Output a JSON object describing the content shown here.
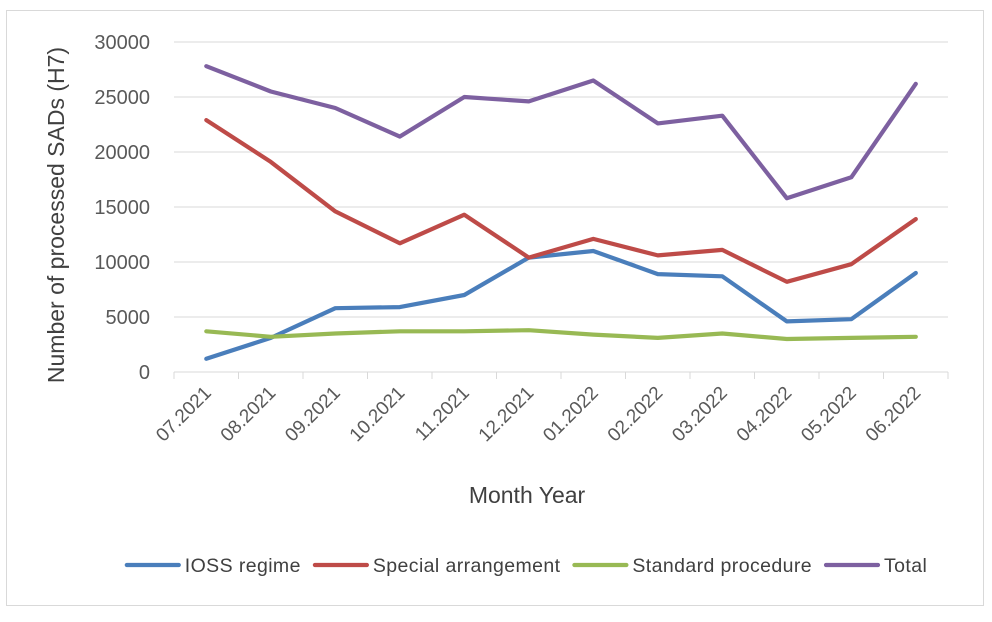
{
  "chart_data": {
    "type": "line",
    "title": "",
    "xlabel": "Month Year",
    "ylabel": "Number of processed SADs (H7)",
    "ylim": [
      0,
      30000
    ],
    "yticks": [
      0,
      5000,
      10000,
      15000,
      20000,
      25000,
      30000
    ],
    "grid": "horizontal",
    "legend_position": "bottom",
    "categories": [
      "07.2021",
      "08.2021",
      "09.2021",
      "10.2021",
      "11.2021",
      "12.2021",
      "01.2022",
      "02.2022",
      "03.2022",
      "04.2022",
      "05.2022",
      "06.2022"
    ],
    "series": [
      {
        "name": "IOSS regime",
        "color": "#4a7ebb",
        "values": [
          1200,
          3100,
          5800,
          5900,
          7000,
          10400,
          11000,
          8900,
          8700,
          4600,
          4800,
          9000
        ]
      },
      {
        "name": "Special arrangement",
        "color": "#be4b48",
        "values": [
          22900,
          19100,
          14600,
          11700,
          14300,
          10400,
          12100,
          10600,
          11100,
          8200,
          9800,
          13900
        ]
      },
      {
        "name": "Standard procedure",
        "color": "#98b954",
        "values": [
          3700,
          3200,
          3500,
          3700,
          3700,
          3800,
          3400,
          3100,
          3500,
          3000,
          3100,
          3200
        ]
      },
      {
        "name": "Total",
        "color": "#7d60a0",
        "values": [
          27800,
          25500,
          24000,
          21400,
          25000,
          24600,
          26500,
          22600,
          23300,
          15800,
          17700,
          26200
        ]
      }
    ]
  }
}
